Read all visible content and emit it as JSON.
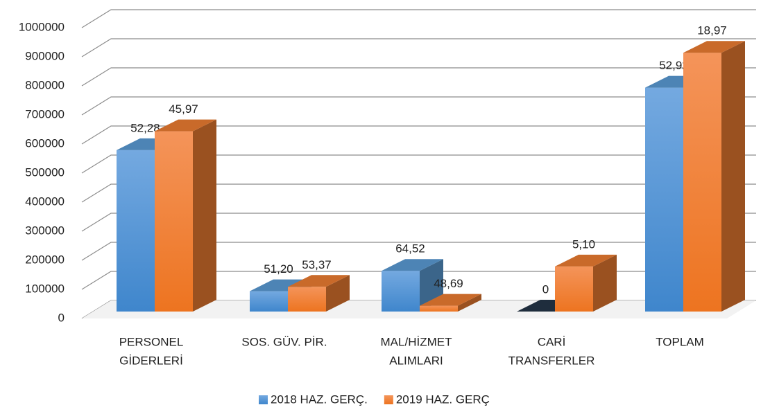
{
  "chart_data": {
    "type": "bar3d",
    "categories": [
      [
        "PERSONEL",
        "GİDERLERİ"
      ],
      [
        "SOS. GÜV. PİR."
      ],
      [
        "MAL/HİZMET",
        "ALIMLARI"
      ],
      [
        "CARİ",
        "TRANSFERLER"
      ],
      [
        "TOPLAM"
      ]
    ],
    "series": [
      {
        "name": "2018 HAZ. GERÇ.",
        "color": "#5b9bd5",
        "values": [
          555000,
          70000,
          140000,
          0,
          770000
        ],
        "labels": [
          "52,28",
          "51,20",
          "64,52",
          "0",
          "52,92"
        ]
      },
      {
        "name": "2019 HAZ. GERÇ",
        "color": "#ed7d31",
        "values": [
          620000,
          85000,
          20000,
          155000,
          890000
        ],
        "labels": [
          "45,97",
          "53,37",
          "48,69",
          "5,10",
          "18,97"
        ]
      }
    ],
    "ylim": [
      0,
      1000000
    ],
    "yticks": [
      0,
      100000,
      200000,
      300000,
      400000,
      500000,
      600000,
      700000,
      800000,
      900000,
      1000000
    ],
    "grid": true,
    "legend": "bottom"
  }
}
